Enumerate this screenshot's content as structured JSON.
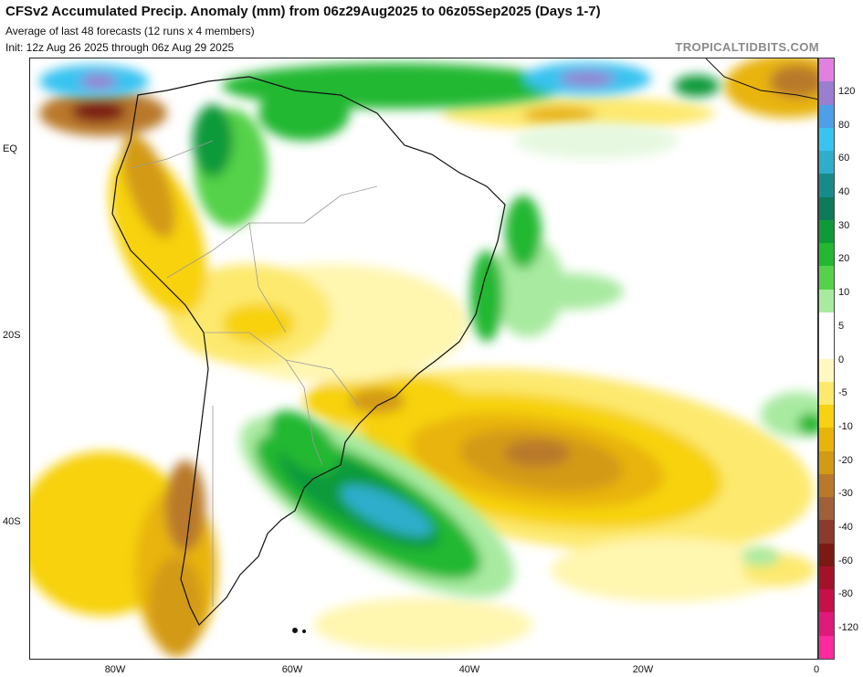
{
  "header": {
    "title": "CFSv2 Accumulated Precip. Anomaly (mm) from 06z29Aug2025 to 06z05Sep2025 (Days 1-7)",
    "subtitle": "Average of last 48 forecasts (12 runs x 4 members)",
    "init": "Init: 12z Aug 26 2025 through 06z Aug 29 2025",
    "brand": "TROPICALTIDBITS.COM"
  },
  "axes": {
    "lat_labels": [
      "EQ",
      "20S",
      "40S"
    ],
    "lon_labels": [
      "80W",
      "60W",
      "40W",
      "20W",
      "0"
    ]
  },
  "colorbar": {
    "labels": [
      "120",
      "80",
      "60",
      "40",
      "30",
      "20",
      "10",
      "5",
      "0",
      "-5",
      "-10",
      "-20",
      "-30",
      "-40",
      "-60",
      "-80",
      "-120"
    ],
    "colors": [
      "#e080e0",
      "#9a7fd0",
      "#4f9fe8",
      "#38c3f0",
      "#2eaecb",
      "#178a8a",
      "#0d7a5a",
      "#0f9a3a",
      "#23b830",
      "#55d24a",
      "#a8eaa0",
      "#ffffff",
      "#ffffff",
      "#fff8c0",
      "#fde96e",
      "#f7d210",
      "#e8b40c",
      "#d39a15",
      "#b9792a",
      "#a0603a",
      "#8a3b2a",
      "#7b1a12",
      "#a4122a",
      "#c5104a",
      "#e01a7a",
      "#ff2aa0"
    ]
  }
}
